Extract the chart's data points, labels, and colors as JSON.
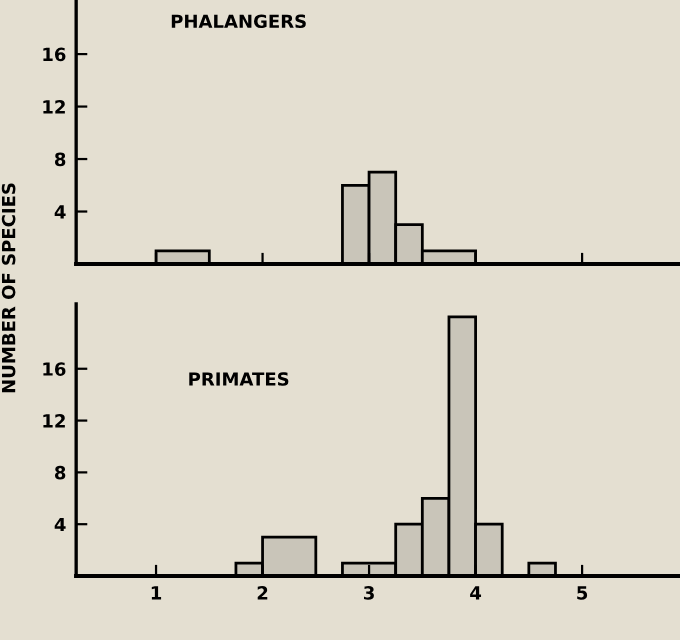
{
  "chart_data": [
    {
      "type": "histogram",
      "title": "PHALANGERS",
      "ylabel": "NUMBER OF SPECIES",
      "bins": [
        1,
        1.5,
        2.75,
        3,
        3.25,
        3.5,
        4
      ],
      "values": [
        1,
        0,
        6,
        7,
        3,
        1
      ],
      "color": "#c9c5b9",
      "xlim": [
        0.25,
        5.9
      ],
      "ylim": [
        0,
        20
      ],
      "xticks": [
        {
          "value": 1,
          "label": null
        },
        {
          "value": 2,
          "label": null
        },
        {
          "value": 3,
          "label": null
        },
        {
          "value": 4,
          "label": null
        },
        {
          "value": 5,
          "label": null
        }
      ],
      "yticks": [
        4,
        8,
        12,
        16
      ],
      "tick_labels": "y"
    },
    {
      "type": "histogram",
      "title": "PRIMATES",
      "bins": [
        1.75,
        2,
        2.5,
        2.75,
        3.25,
        3.5,
        3.75,
        4,
        4.25,
        4.5,
        4.75
      ],
      "values": [
        1,
        3,
        0,
        1,
        4,
        6,
        20,
        4,
        0,
        1
      ],
      "color": "#c9c5b9",
      "xlim": [
        0.25,
        5.9
      ],
      "ylim": [
        0,
        21
      ],
      "xticks": [
        1,
        2,
        3,
        4,
        5
      ],
      "yticks": [
        4,
        8,
        12,
        16
      ]
    }
  ]
}
